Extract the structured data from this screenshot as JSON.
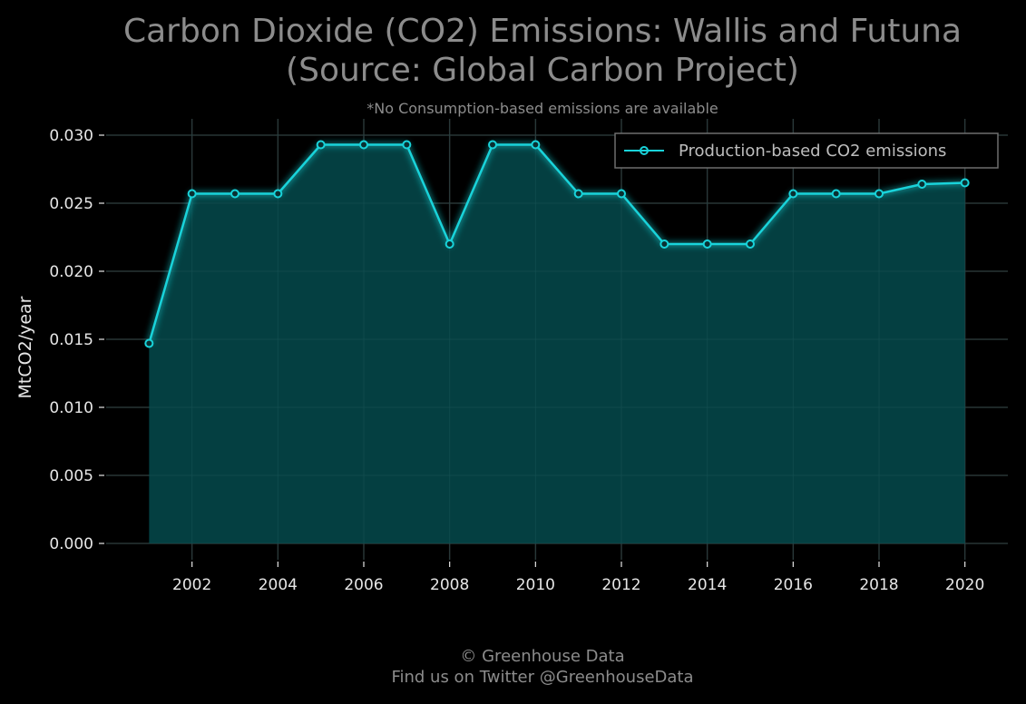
{
  "title_line1": "Carbon Dioxide (CO2) Emissions: Wallis and Futuna",
  "title_line2": "(Source: Global Carbon Project)",
  "subtitle": "*No Consumption-based emissions are available",
  "footer_line1": "© Greenhouse Data",
  "footer_line2": "Find us on Twitter @GreenhouseData",
  "colors": {
    "background": "#000000",
    "line": "#19d3da",
    "area_fill": "#044245",
    "title": "#8c8c8c",
    "tick_text": "#e6e6e6",
    "grid": "#2b2b2b",
    "legend_border": "#6e6e6e"
  },
  "chart_data": {
    "type": "area",
    "title": "Carbon Dioxide (CO2) Emissions: Wallis and Futuna (Source: Global Carbon Project)",
    "subtitle": "*No Consumption-based emissions are available",
    "xlabel": "",
    "ylabel": "MtCO2/year",
    "xlim": [
      2000,
      2021
    ],
    "ylim": [
      -0.0012,
      0.0312
    ],
    "xticks": [
      2002,
      2004,
      2006,
      2008,
      2010,
      2012,
      2014,
      2016,
      2018,
      2020
    ],
    "xtick_labels": [
      "2002",
      "2004",
      "2006",
      "2008",
      "2010",
      "2012",
      "2014",
      "2016",
      "2018",
      "2020"
    ],
    "yticks": [
      0.0,
      0.005,
      0.01,
      0.015,
      0.02,
      0.025,
      0.03
    ],
    "ytick_labels": [
      "0.000",
      "0.005",
      "0.010",
      "0.015",
      "0.020",
      "0.025",
      "0.030"
    ],
    "grid": true,
    "legend_position": "top-right",
    "x": [
      2001,
      2002,
      2003,
      2004,
      2005,
      2006,
      2007,
      2008,
      2009,
      2010,
      2011,
      2012,
      2013,
      2014,
      2015,
      2016,
      2017,
      2018,
      2019,
      2020
    ],
    "series": [
      {
        "name": "Production-based CO2 emissions",
        "values": [
          0.0147,
          0.0257,
          0.0257,
          0.0257,
          0.0293,
          0.0293,
          0.0293,
          0.022,
          0.0293,
          0.0293,
          0.0257,
          0.0257,
          0.022,
          0.022,
          0.022,
          0.0257,
          0.0257,
          0.0257,
          0.0264,
          0.0265
        ]
      }
    ]
  }
}
